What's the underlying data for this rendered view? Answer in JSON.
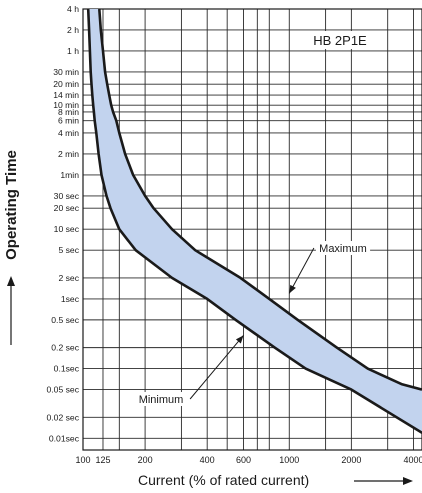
{
  "chart_data": {
    "type": "area",
    "title": "HB 2P1E",
    "xlabel": "Current (% of rated current)",
    "ylabel": "Operating Time",
    "x_scale": "log",
    "y_scale": "log",
    "x_range_percent": [
      100,
      4400
    ],
    "y_range_seconds": [
      0.0068,
      14400
    ],
    "grid": true,
    "band_fill_color": "#c2d3ee",
    "curve_color": "#1a1a1a",
    "x_ticks": [
      {
        "value": 100,
        "label": "100"
      },
      {
        "value": 125,
        "label": "125"
      },
      {
        "value": 200,
        "label": "200"
      },
      {
        "value": 400,
        "label": "400"
      },
      {
        "value": 600,
        "label": "600"
      },
      {
        "value": 1000,
        "label": "1000"
      },
      {
        "value": 2000,
        "label": "2000"
      },
      {
        "value": 4000,
        "label": "4000"
      }
    ],
    "x_gridlines": [
      100,
      125,
      150,
      200,
      300,
      400,
      500,
      600,
      700,
      800,
      1000,
      1500,
      2000,
      3000,
      4000
    ],
    "y_ticks": [
      {
        "seconds": 14400,
        "label": "4 h"
      },
      {
        "seconds": 7200,
        "label": "2 h"
      },
      {
        "seconds": 3600,
        "label": "1 h"
      },
      {
        "seconds": 1800,
        "label": "30 min"
      },
      {
        "seconds": 1200,
        "label": "20 min"
      },
      {
        "seconds": 840,
        "label": "14 min"
      },
      {
        "seconds": 600,
        "label": "10 min"
      },
      {
        "seconds": 480,
        "label": "8 min"
      },
      {
        "seconds": 360,
        "label": "6 min"
      },
      {
        "seconds": 240,
        "label": "4 min"
      },
      {
        "seconds": 120,
        "label": "2 min"
      },
      {
        "seconds": 60,
        "label": "1min"
      },
      {
        "seconds": 30,
        "label": "30 sec"
      },
      {
        "seconds": 20,
        "label": "20 sec"
      },
      {
        "seconds": 10,
        "label": "10 sec"
      },
      {
        "seconds": 5,
        "label": "5 sec"
      },
      {
        "seconds": 2,
        "label": "2 sec"
      },
      {
        "seconds": 1,
        "label": "1sec"
      },
      {
        "seconds": 0.5,
        "label": "0.5 sec"
      },
      {
        "seconds": 0.2,
        "label": "0.2 sec"
      },
      {
        "seconds": 0.1,
        "label": "0.1sec"
      },
      {
        "seconds": 0.05,
        "label": "0.05 sec"
      },
      {
        "seconds": 0.02,
        "label": "0.02 sec"
      },
      {
        "seconds": 0.01,
        "label": "0.01sec"
      }
    ],
    "series": [
      {
        "name": "Maximum",
        "points": [
          [
            120,
            14400
          ],
          [
            122,
            7200
          ],
          [
            125,
            3600
          ],
          [
            128,
            1800
          ],
          [
            131,
            1200
          ],
          [
            134,
            840
          ],
          [
            137,
            600
          ],
          [
            140,
            480
          ],
          [
            145,
            360
          ],
          [
            150,
            240
          ],
          [
            160,
            120
          ],
          [
            175,
            60
          ],
          [
            200,
            30
          ],
          [
            220,
            20
          ],
          [
            270,
            10
          ],
          [
            350,
            5
          ],
          [
            580,
            2
          ],
          [
            800,
            1
          ],
          [
            1100,
            0.5
          ],
          [
            1700,
            0.2
          ],
          [
            2400,
            0.1
          ],
          [
            3500,
            0.06
          ],
          [
            4400,
            0.05
          ]
        ]
      },
      {
        "name": "Minimum",
        "points": [
          [
            106,
            14400
          ],
          [
            107,
            7200
          ],
          [
            108,
            3600
          ],
          [
            109,
            1800
          ],
          [
            110,
            1200
          ],
          [
            111,
            840
          ],
          [
            112,
            600
          ],
          [
            113,
            480
          ],
          [
            114,
            360
          ],
          [
            116,
            240
          ],
          [
            119,
            120
          ],
          [
            123,
            60
          ],
          [
            130,
            30
          ],
          [
            136,
            20
          ],
          [
            150,
            10
          ],
          [
            180,
            5
          ],
          [
            270,
            2
          ],
          [
            400,
            1
          ],
          [
            550,
            0.5
          ],
          [
            850,
            0.2
          ],
          [
            1200,
            0.1
          ],
          [
            2000,
            0.05
          ],
          [
            4400,
            0.012
          ]
        ]
      }
    ],
    "annotations": [
      {
        "text": "Maximum",
        "points_to": [
          1000,
          1.2
        ]
      },
      {
        "text": "Minimum",
        "points_to": [
          600,
          0.3
        ]
      }
    ]
  }
}
